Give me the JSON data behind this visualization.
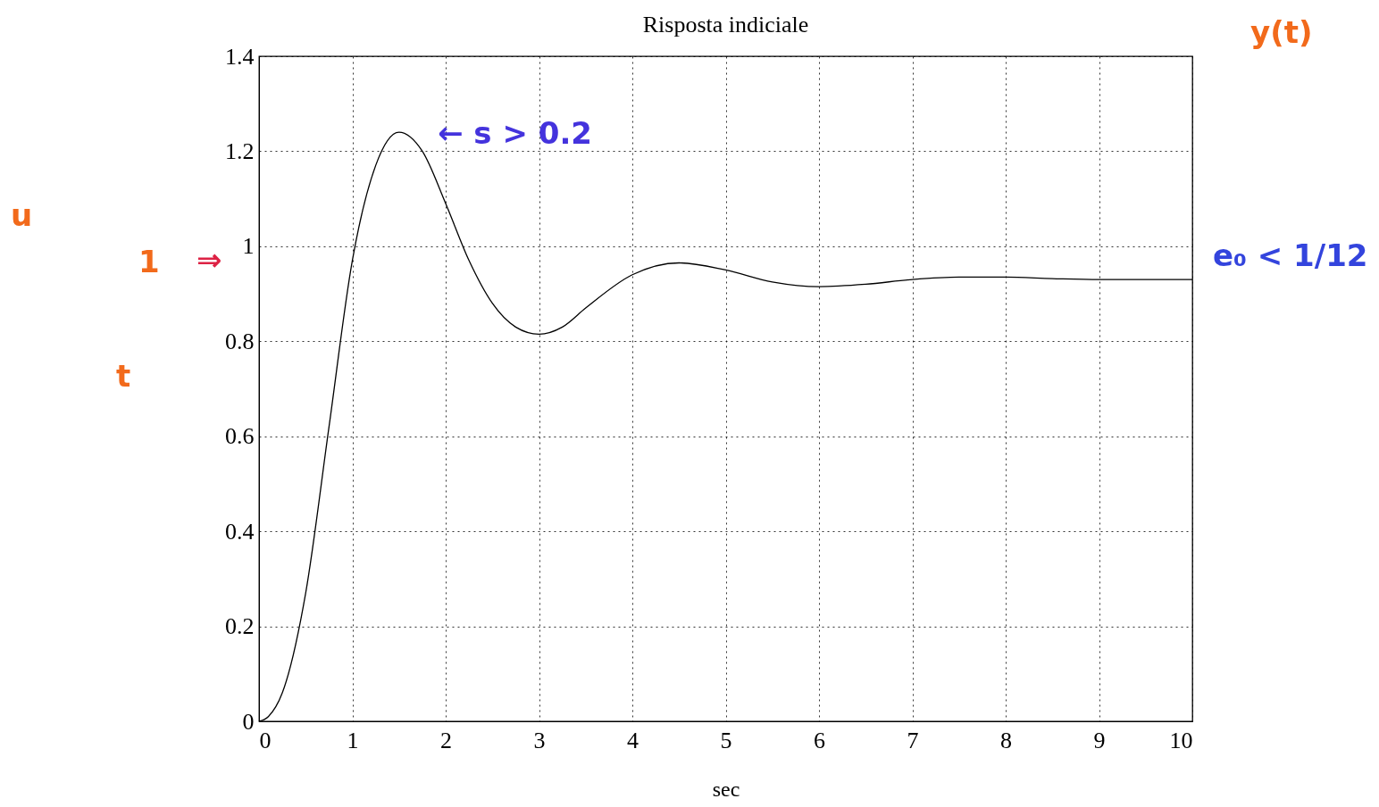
{
  "chart_data": {
    "type": "line",
    "title": "Risposta indiciale",
    "xlabel": "sec",
    "x": [
      0,
      0.1,
      0.25,
      0.5,
      0.75,
      1,
      1.25,
      1.5,
      1.75,
      2,
      2.25,
      2.5,
      2.75,
      3,
      3.25,
      3.5,
      4,
      4.5,
      5,
      5.5,
      6,
      6.5,
      7,
      7.5,
      8,
      8.5,
      9,
      9.5,
      10
    ],
    "series": [
      {
        "color": "#000000",
        "values": [
          0,
          0.01,
          0.06,
          0.27,
          0.62,
          0.97,
          1.17,
          1.24,
          1.2,
          1.09,
          0.97,
          0.88,
          0.83,
          0.815,
          0.83,
          0.87,
          0.94,
          0.965,
          0.95,
          0.925,
          0.915,
          0.92,
          0.93,
          0.935,
          0.935,
          0.932,
          0.93,
          0.93,
          0.93
        ]
      }
    ],
    "xlim": [
      0,
      10
    ],
    "xticks": [
      0,
      1,
      2,
      3,
      4,
      5,
      6,
      7,
      8,
      9,
      10
    ],
    "ylim": [
      0,
      1.4
    ],
    "yticks": [
      0,
      0.2,
      0.4,
      0.6,
      0.8,
      1,
      1.2,
      1.4
    ],
    "grid": true,
    "line_style": "solid",
    "marker": "none",
    "annotations": [
      "y(t)",
      "← s > 0.2",
      "e₀ < 1/12",
      "u",
      "1",
      "t",
      "⇒"
    ]
  }
}
